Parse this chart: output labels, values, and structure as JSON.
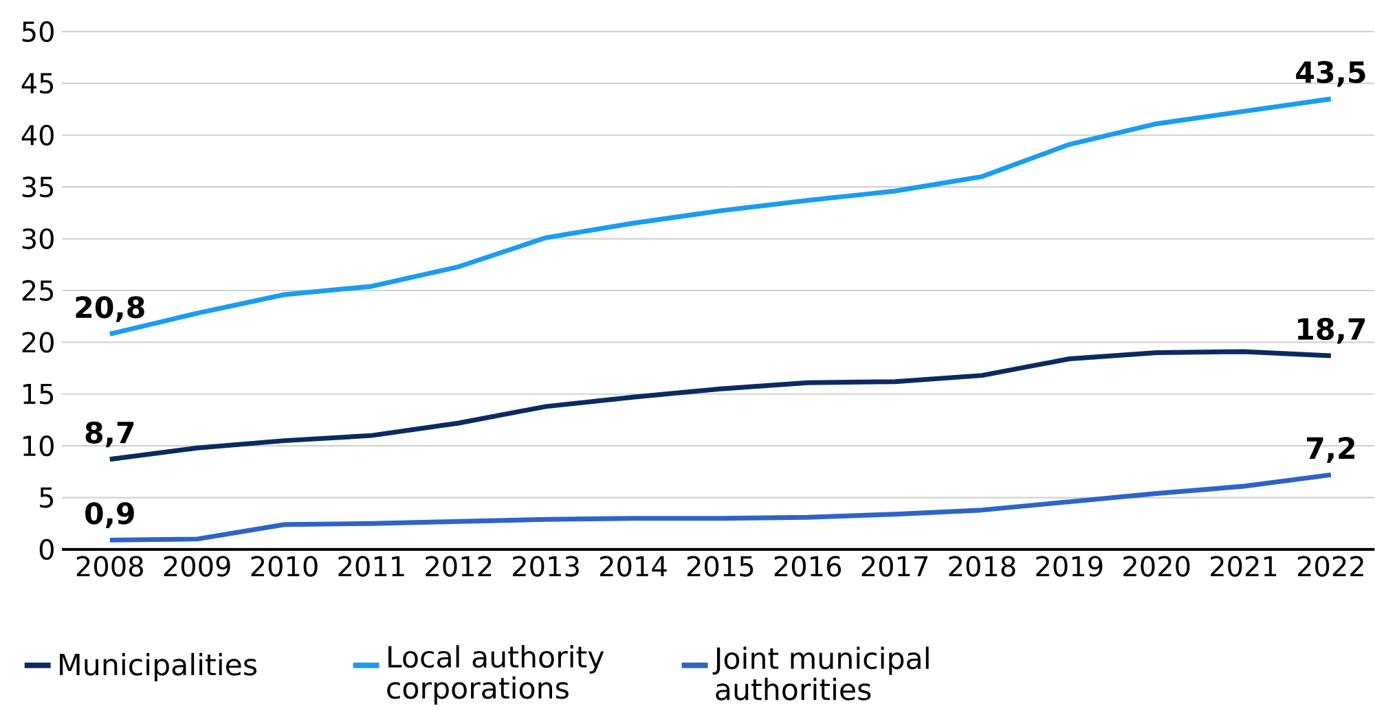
{
  "chart_data": {
    "type": "line",
    "categories": [
      "2008",
      "2009",
      "2010",
      "2011",
      "2012",
      "2013",
      "2014",
      "2015",
      "2016",
      "2017",
      "2018",
      "2019",
      "2020",
      "2021",
      "2022"
    ],
    "series": [
      {
        "name": "Municipalities",
        "color": "#0b2a63",
        "values": [
          8.7,
          9.8,
          10.5,
          11.0,
          12.2,
          13.8,
          14.7,
          15.5,
          16.1,
          16.2,
          16.8,
          18.4,
          19.0,
          19.1,
          18.7
        ],
        "value_labels": [
          "8,7",
          null,
          null,
          null,
          null,
          null,
          null,
          null,
          null,
          null,
          null,
          null,
          null,
          null,
          "18,7"
        ]
      },
      {
        "name": "Local authority corporations",
        "color": "#1a9cf0",
        "values": [
          20.8,
          22.8,
          24.6,
          25.4,
          27.3,
          30.1,
          31.5,
          32.7,
          33.7,
          34.6,
          36.0,
          39.1,
          41.1,
          42.3,
          43.5
        ],
        "value_labels": [
          "20,8",
          null,
          null,
          null,
          null,
          null,
          null,
          null,
          null,
          null,
          null,
          null,
          null,
          null,
          "43,5"
        ]
      },
      {
        "name": "Joint municipal authorities",
        "color": "#2e64c8",
        "values": [
          0.9,
          1.0,
          2.4,
          2.5,
          2.7,
          2.9,
          3.0,
          3.0,
          3.1,
          3.4,
          3.8,
          4.6,
          5.4,
          6.1,
          7.2
        ],
        "value_labels": [
          "0,9",
          null,
          null,
          null,
          null,
          null,
          null,
          null,
          null,
          null,
          null,
          null,
          null,
          null,
          "7,2"
        ]
      }
    ],
    "ylim": [
      0,
      50
    ],
    "yticks": [
      0,
      5,
      10,
      15,
      20,
      25,
      30,
      35,
      40,
      45,
      50
    ],
    "grid": "y",
    "legend": "bottom"
  }
}
